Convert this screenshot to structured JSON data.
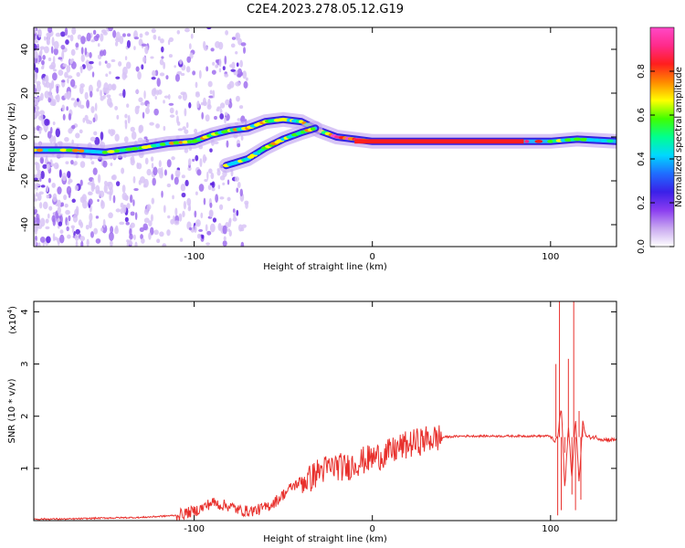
{
  "title": "C2E4.2023.278.05.12.G19",
  "chart_data": [
    {
      "type": "heatmap",
      "xlabel": "Height of straight line (km)",
      "ylabel": "Frequency (Hz)",
      "xlim": [
        -190,
        137
      ],
      "ylim": [
        -50,
        50
      ],
      "xticks": [
        -100,
        0,
        100
      ],
      "yticks": [
        -40,
        -20,
        0,
        20,
        40
      ],
      "colorbar": {
        "label": "Normalized spectral amplitude",
        "range": [
          0.0,
          1.0
        ],
        "ticks": [
          0.0,
          0.2,
          0.4,
          0.6,
          0.8
        ],
        "colors": [
          "#ffffff",
          "#c9a8f0",
          "#8a3cf0",
          "#3a20e8",
          "#1f6dff",
          "#00d8ff",
          "#00ff90",
          "#40ff00",
          "#ffff00",
          "#ff8a00",
          "#ff1e1e",
          "#ff2a8a",
          "#ff49c8"
        ]
      },
      "ridges": [
        {
          "name": "",
          "points": [
            [
              -190,
              -6
            ],
            [
              -170,
              -6
            ],
            [
              -150,
              -7
            ],
            [
              -130,
              -5
            ],
            [
              -115,
              -3
            ],
            [
              -100,
              -2
            ],
            [
              -90,
              1
            ],
            [
              -80,
              3
            ],
            [
              -70,
              4
            ],
            [
              -60,
              7
            ],
            [
              -50,
              8
            ],
            [
              -40,
              7
            ],
            [
              -30,
              3
            ],
            [
              -20,
              0
            ],
            [
              -10,
              -1
            ],
            [
              0,
              -2
            ],
            [
              20,
              -2
            ],
            [
              60,
              -2
            ],
            [
              100,
              -2
            ],
            [
              115,
              -1
            ],
            [
              137,
              -2
            ]
          ]
        },
        {
          "name": "",
          "points": [
            [
              -82,
              -13
            ],
            [
              -70,
              -10
            ],
            [
              -60,
              -5
            ],
            [
              -50,
              -1
            ],
            [
              -40,
              2
            ],
            [
              -32,
              4
            ]
          ]
        }
      ]
    },
    {
      "type": "line",
      "xlabel": "Height of straight line (km)",
      "ylabel": "SNR (10 * v/v)",
      "y_scale_note": "(x10",
      "y_scale_exp": "4",
      "y_scale_close": ")",
      "xlim": [
        -190,
        137
      ],
      "ylim": [
        0,
        4.2
      ],
      "xticks": [
        -100,
        0,
        100
      ],
      "yticks": [
        1,
        2,
        3,
        4
      ],
      "series_color": "#e8302c",
      "series": [
        {
          "name": "",
          "x": [
            -190,
            -170,
            -150,
            -130,
            -110,
            -100,
            -95,
            -90,
            -85,
            -80,
            -75,
            -70,
            -65,
            -60,
            -55,
            -50,
            -45,
            -40,
            -35,
            -30,
            -25,
            -20,
            -15,
            -10,
            -5,
            0,
            5,
            10,
            15,
            20,
            25,
            30,
            40,
            50,
            60,
            70,
            80,
            90,
            95,
            100,
            102,
            104,
            106,
            108,
            110,
            112,
            114,
            116,
            118,
            120,
            125,
            130,
            137
          ],
          "y": [
            0.03,
            0.03,
            0.05,
            0.06,
            0.1,
            0.18,
            0.25,
            0.35,
            0.3,
            0.28,
            0.2,
            0.18,
            0.2,
            0.25,
            0.35,
            0.5,
            0.65,
            0.75,
            0.8,
            0.95,
            1.0,
            1.05,
            1.0,
            1.1,
            1.15,
            1.2,
            1.25,
            1.3,
            1.4,
            1.45,
            1.5,
            1.55,
            1.6,
            1.62,
            1.62,
            1.62,
            1.62,
            1.62,
            1.62,
            1.62,
            1.5,
            1.6,
            2.2,
            0.6,
            1.8,
            0.8,
            2.0,
            0.7,
            1.9,
            1.6,
            1.6,
            1.55,
            1.55
          ]
        }
      ],
      "spikes": [
        [
          103,
          3.0
        ],
        [
          104,
          0.1
        ],
        [
          105,
          4.2
        ],
        [
          106,
          0.2
        ],
        [
          108,
          1.3
        ],
        [
          110,
          3.1
        ],
        [
          112,
          0.5
        ],
        [
          113,
          4.2
        ],
        [
          114,
          0.2
        ],
        [
          116,
          2.1
        ],
        [
          117,
          0.4
        ],
        [
          118,
          1.8
        ]
      ]
    }
  ]
}
